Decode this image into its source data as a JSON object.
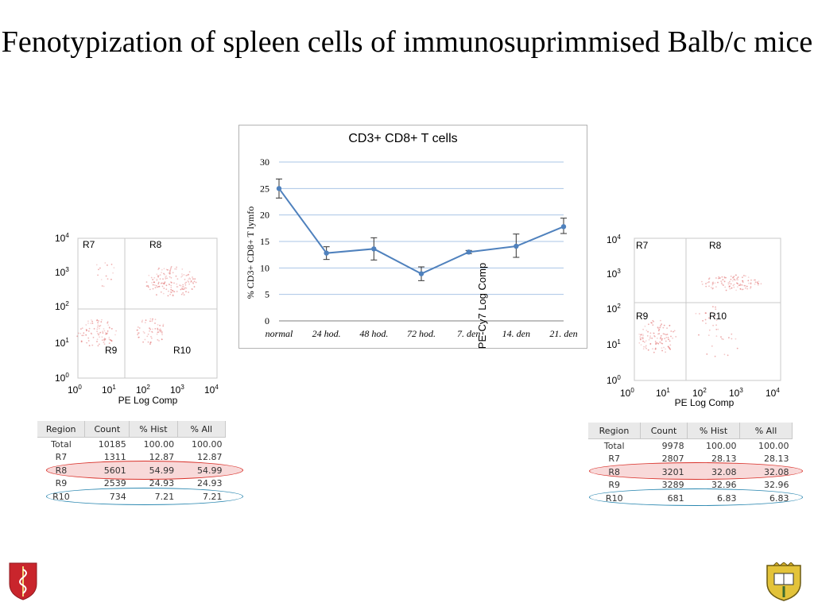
{
  "slide": {
    "title": "Fenotypization of spleen cells of immunosuprimmised Balb/c mice"
  },
  "chart_data": {
    "type": "line",
    "title": "CD3+ CD8+ T cells",
    "ylabel": "% CD3+ CD8+ T lymfo",
    "xlabel": "",
    "categories": [
      "normal",
      "24 hod.",
      "48 hod.",
      "72 hod.",
      "7. den",
      "14. den",
      "21. den"
    ],
    "values": [
      25,
      12.8,
      13.6,
      8.9,
      13.0,
      14.1,
      17.8
    ],
    "error_low": [
      1.8,
      1.2,
      2.1,
      1.3,
      0.3,
      2.1,
      1.3
    ],
    "error_high": [
      1.8,
      1.2,
      2.1,
      1.3,
      0.3,
      2.3,
      1.6
    ],
    "ylim": [
      0,
      30
    ],
    "yticks": [
      "0",
      "5",
      "10",
      "15",
      "20",
      "25",
      "30"
    ],
    "grid": true,
    "color": "#4f81bd"
  },
  "flow_left": {
    "y_ticks": [
      {
        "base": "10",
        "exp": "0"
      },
      {
        "base": "10",
        "exp": "1"
      },
      {
        "base": "10",
        "exp": "2"
      },
      {
        "base": "10",
        "exp": "3"
      },
      {
        "base": "10",
        "exp": "4"
      }
    ],
    "x_ticks": [
      {
        "base": "10",
        "exp": "0"
      },
      {
        "base": "10",
        "exp": "1"
      },
      {
        "base": "10",
        "exp": "2"
      },
      {
        "base": "10",
        "exp": "3"
      },
      {
        "base": "10",
        "exp": "4"
      }
    ],
    "x_label": "PE Log Comp",
    "regions": {
      "r7": "R7",
      "r8": "R8",
      "r9": "R9",
      "r10": "R10"
    }
  },
  "flow_right": {
    "y_label": "PE-Cy7 Log Comp",
    "y_ticks": [
      {
        "base": "10",
        "exp": "0"
      },
      {
        "base": "10",
        "exp": "1"
      },
      {
        "base": "10",
        "exp": "2"
      },
      {
        "base": "10",
        "exp": "3"
      },
      {
        "base": "10",
        "exp": "4"
      }
    ],
    "x_ticks": [
      {
        "base": "10",
        "exp": "0"
      },
      {
        "base": "10",
        "exp": "1"
      },
      {
        "base": "10",
        "exp": "2"
      },
      {
        "base": "10",
        "exp": "3"
      },
      {
        "base": "10",
        "exp": "4"
      }
    ],
    "x_label": "PE Log Comp",
    "regions": {
      "r7": "R7",
      "r8": "R8",
      "r9": "R9",
      "r10": "R10"
    }
  },
  "table_left": {
    "headers": [
      "Region",
      "Count",
      "% Hist",
      "% All"
    ],
    "rows": [
      [
        "Total",
        "10185",
        "100.00",
        "100.00"
      ],
      [
        "R7",
        "1311",
        "12.87",
        "12.87"
      ],
      [
        "R8",
        "5601",
        "54.99",
        "54.99"
      ],
      [
        "R9",
        "2539",
        "24.93",
        "24.93"
      ],
      [
        "R10",
        "734",
        "7.21",
        "7.21"
      ]
    ]
  },
  "table_right": {
    "headers": [
      "Region",
      "Count",
      "% Hist",
      "% All"
    ],
    "rows": [
      [
        "Total",
        "9978",
        "100.00",
        "100.00"
      ],
      [
        "R7",
        "2807",
        "28.13",
        "28.13"
      ],
      [
        "R8",
        "3201",
        "32.08",
        "32.08"
      ],
      [
        "R9",
        "3289",
        "32.96",
        "32.96"
      ],
      [
        "R10",
        "681",
        "6.83",
        "6.83"
      ]
    ]
  },
  "colors": {
    "accent": "#4f81bd",
    "highlight_red": "#d9322b",
    "highlight_blue": "#2a87b0",
    "dots": "#e06a6a"
  }
}
